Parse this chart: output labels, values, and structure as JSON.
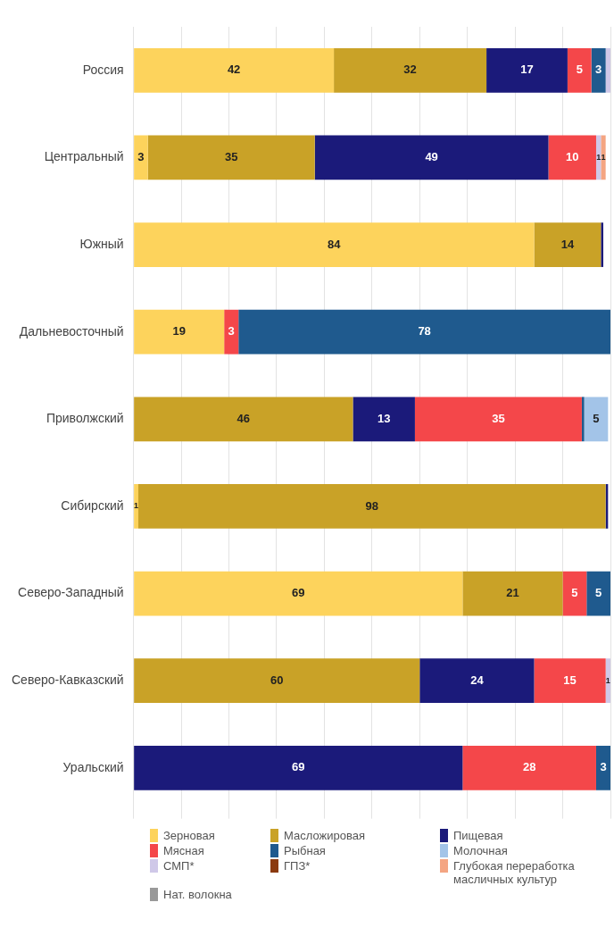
{
  "chart_data": {
    "type": "bar",
    "orientation": "horizontal",
    "stacked": true,
    "categories": [
      "Россия",
      "Центральный",
      "Южный",
      "Дальневосточный",
      "Приволжский",
      "Сибирский",
      "Северо-Западный",
      "Северо-Кавказский",
      "Уральский"
    ],
    "series": [
      {
        "name": "Зерновая",
        "color": "#fdd35c",
        "values": [
          42,
          3,
          84,
          19,
          null,
          1,
          69,
          null,
          null
        ],
        "value_labels": [
          "42",
          "3",
          "84",
          "19",
          null,
          "1",
          "69",
          null,
          null
        ]
      },
      {
        "name": "Масложировая",
        "color": "#c9a227",
        "values": [
          32,
          35,
          14,
          null,
          46,
          98,
          21,
          60,
          null
        ],
        "value_labels": [
          "32",
          "35",
          "14",
          null,
          "46",
          "98",
          "21",
          "60",
          null
        ]
      },
      {
        "name": "Пищевая",
        "color": "#1b1a7a",
        "values": [
          17,
          49,
          0.5,
          null,
          13,
          0.5,
          null,
          24,
          69
        ],
        "value_labels": [
          "17",
          "49",
          null,
          null,
          "13",
          null,
          null,
          "24",
          "69"
        ]
      },
      {
        "name": "Мясная",
        "color": "#f4474a",
        "values": [
          5,
          10,
          null,
          3,
          35,
          null,
          5,
          15,
          28
        ],
        "value_labels": [
          "5",
          "10",
          null,
          "3",
          "35",
          null,
          "5",
          "15",
          "28"
        ]
      },
      {
        "name": "Рыбная",
        "color": "#1f5a8e",
        "values": [
          3,
          null,
          null,
          78,
          0.5,
          null,
          5,
          null,
          3
        ],
        "value_labels": [
          "3",
          null,
          null,
          "78",
          null,
          null,
          "5",
          null,
          "3"
        ]
      },
      {
        "name": "Молочная",
        "color": "#a3c4e8",
        "values": [
          null,
          null,
          null,
          null,
          5,
          null,
          null,
          null,
          null
        ],
        "value_labels": [
          null,
          null,
          null,
          null,
          "5",
          null,
          null,
          null,
          null
        ]
      },
      {
        "name": "СМП*",
        "color": "#cfc8e8",
        "values": [
          1,
          1,
          null,
          null,
          null,
          null,
          null,
          1,
          null
        ],
        "value_labels": [
          null,
          "1",
          null,
          null,
          null,
          null,
          null,
          "1",
          null
        ]
      },
      {
        "name": "ГПЗ*",
        "color": "#8b3a0f",
        "values": [
          null,
          null,
          null,
          null,
          null,
          null,
          null,
          null,
          null
        ]
      },
      {
        "name": "Глубокая переработка масличных культур",
        "color": "#f4a582",
        "values": [
          null,
          1,
          null,
          null,
          null,
          null,
          null,
          null,
          null
        ],
        "value_labels": [
          null,
          "1",
          null,
          null,
          null,
          null,
          null,
          null,
          null
        ]
      },
      {
        "name": "Нат. волокна",
        "color": "#999999",
        "values": [
          null,
          null,
          null,
          null,
          null,
          null,
          null,
          null,
          null
        ]
      }
    ],
    "xlim": [
      0,
      100
    ],
    "xticks": [
      {
        "value": 0,
        "label": null
      },
      {
        "value": 10,
        "label": null
      },
      {
        "value": 20,
        "label": null
      },
      {
        "value": 30,
        "label": null
      },
      {
        "value": 40,
        "label": null
      },
      {
        "value": 50,
        "label": null
      },
      {
        "value": 60,
        "label": null
      },
      {
        "value": 70,
        "label": null
      },
      {
        "value": 80,
        "label": null
      },
      {
        "value": 90,
        "label": null
      },
      {
        "value": 100,
        "label": null
      }
    ],
    "tick_labels": "y",
    "grid": "x",
    "legend": "bottom"
  }
}
